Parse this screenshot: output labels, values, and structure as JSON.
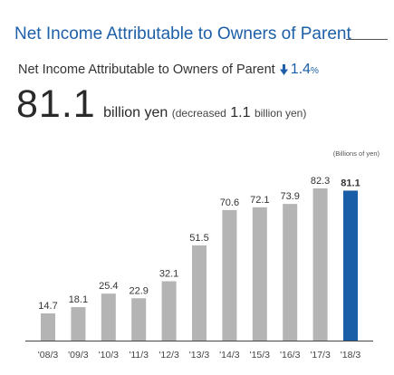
{
  "section_title": "Net Income Attributable to Owners of Parent",
  "subhead": {
    "label": "Net Income Attributable to Owners of Parent",
    "change_value": "1.4",
    "change_unit": "%",
    "change_direction_icon": "arrow-down-icon"
  },
  "headline": {
    "value": "81.1",
    "unit": "billion yen",
    "note_prefix": "(decreased",
    "note_value": "1.1",
    "note_suffix": "billion yen)"
  },
  "colors": {
    "title_blue": "#1d5fa8",
    "bar_gray": "#b4b4b4",
    "bar_highlight": "#1a5ea8"
  },
  "chart_data": {
    "type": "bar",
    "unit_label": "(Billions of yen)",
    "categories": [
      "'08/3",
      "'09/3",
      "'10/3",
      "'11/3",
      "'12/3",
      "'13/3",
      "'14/3",
      "'15/3",
      "'16/3",
      "'17/3",
      "'18/3"
    ],
    "values": [
      14.7,
      18.1,
      25.4,
      22.9,
      32.1,
      51.5,
      70.6,
      72.1,
      73.9,
      82.3,
      81.1
    ],
    "value_labels": [
      "14.7",
      "18.1",
      "25.4",
      "22.9",
      "32.1",
      "51.5",
      "70.6",
      "72.1",
      "73.9",
      "82.3",
      "81.1"
    ],
    "highlight_index": 10,
    "ylim": [
      0,
      82.3
    ],
    "grid": false,
    "title": "",
    "xlabel": "",
    "ylabel": ""
  }
}
